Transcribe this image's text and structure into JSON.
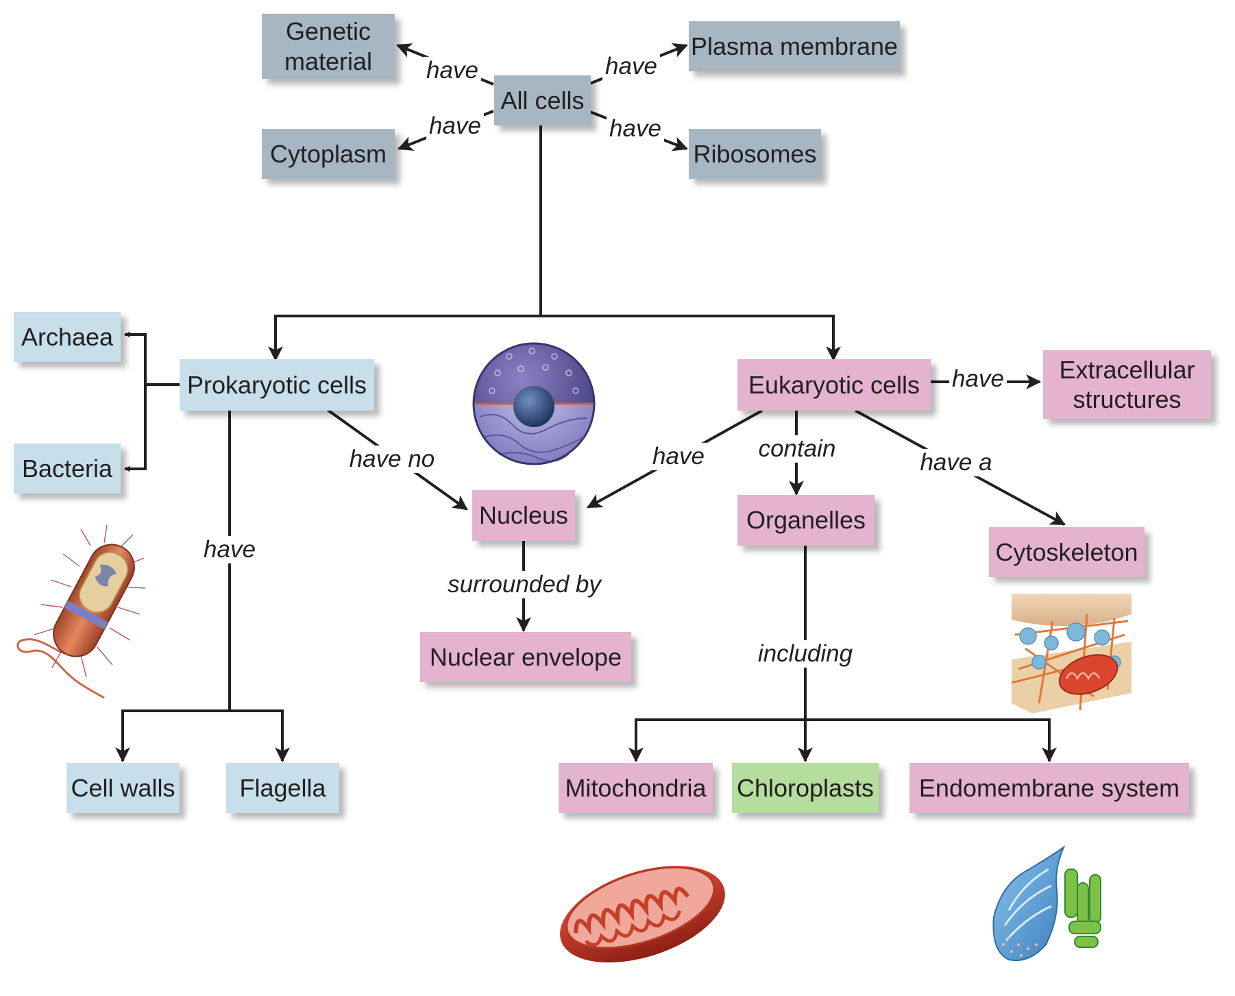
{
  "nodes": {
    "all_cells": "All cells",
    "genetic_material": "Genetic material",
    "plasma_membrane": "Plasma membrane",
    "cytoplasm": "Cytoplasm",
    "ribosomes": "Ribosomes",
    "prokaryotic_cells": "Prokaryotic cells",
    "eukaryotic_cells": "Eukaryotic cells",
    "archaea": "Archaea",
    "bacteria": "Bacteria",
    "extracellular_structures": "Extracellular structures",
    "nucleus": "Nucleus",
    "organelles": "Organelles",
    "cytoskeleton": "Cytoskeleton",
    "nuclear_envelope": "Nuclear envelope",
    "cell_walls": "Cell walls",
    "flagella": "Flagella",
    "mitochondria": "Mitochondria",
    "chloroplasts": "Chloroplasts",
    "endomembrane_system": "Endomembrane system"
  },
  "labels": {
    "have_genetic": "have",
    "have_plasma": "have",
    "have_cytoplasm": "have",
    "have_ribosomes": "have",
    "have_extracellular": "have",
    "have_no": "have no",
    "have_nucleus": "have",
    "contain": "contain",
    "have_a": "have a",
    "have_prok": "have",
    "surrounded_by": "surrounded by",
    "including": "including"
  },
  "colors": {
    "all_cells_group": "#a6b6c2",
    "prokaryote": "#c6dfea",
    "eukaryote": "#e4b3cf",
    "plant_specific": "#b5dd9e",
    "connector": "#231f20"
  },
  "illustrations": [
    "nucleus-illustration",
    "bacterium-illustration",
    "cytoskeleton-illustration",
    "mitochondrion-illustration",
    "endomembrane-illustration"
  ]
}
